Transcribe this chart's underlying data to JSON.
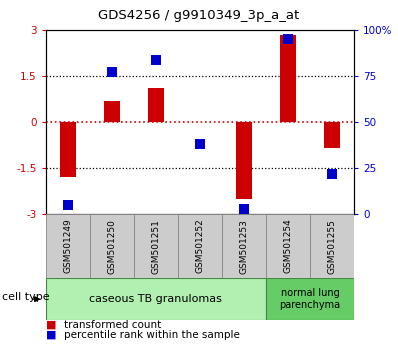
{
  "title": "GDS4256 / g9910349_3p_a_at",
  "samples": [
    "GSM501249",
    "GSM501250",
    "GSM501251",
    "GSM501252",
    "GSM501253",
    "GSM501254",
    "GSM501255"
  ],
  "transformed_count": [
    -1.8,
    0.7,
    1.1,
    0.02,
    -2.5,
    2.85,
    -0.85
  ],
  "percentile_rank": [
    5,
    77,
    84,
    38,
    3,
    95,
    22
  ],
  "cell_types": [
    {
      "label": "caseous TB granulomas",
      "n_samples": 5,
      "color": "#b2f0b2"
    },
    {
      "label": "normal lung\nparenchyma",
      "n_samples": 2,
      "color": "#66cc66"
    }
  ],
  "ylim_left": [
    -3,
    3
  ],
  "ylim_right": [
    0,
    100
  ],
  "yticks_left": [
    -3,
    -1.5,
    0,
    1.5,
    3
  ],
  "yticks_right": [
    0,
    25,
    50,
    75,
    100
  ],
  "bar_color": "#cc0000",
  "dot_color": "#0000cc",
  "hline_red_color": "#cc0000",
  "hline_black_color": "#000000",
  "bg_color": "#ffffff",
  "sample_bg": "#cccccc",
  "bar_width": 0.35,
  "dot_size": 45,
  "legend_bar_label": "transformed count",
  "legend_dot_label": "percentile rank within the sample",
  "left_tick_color": "#cc0000",
  "right_tick_color": "#0000cc",
  "cell_type_label": "cell type"
}
